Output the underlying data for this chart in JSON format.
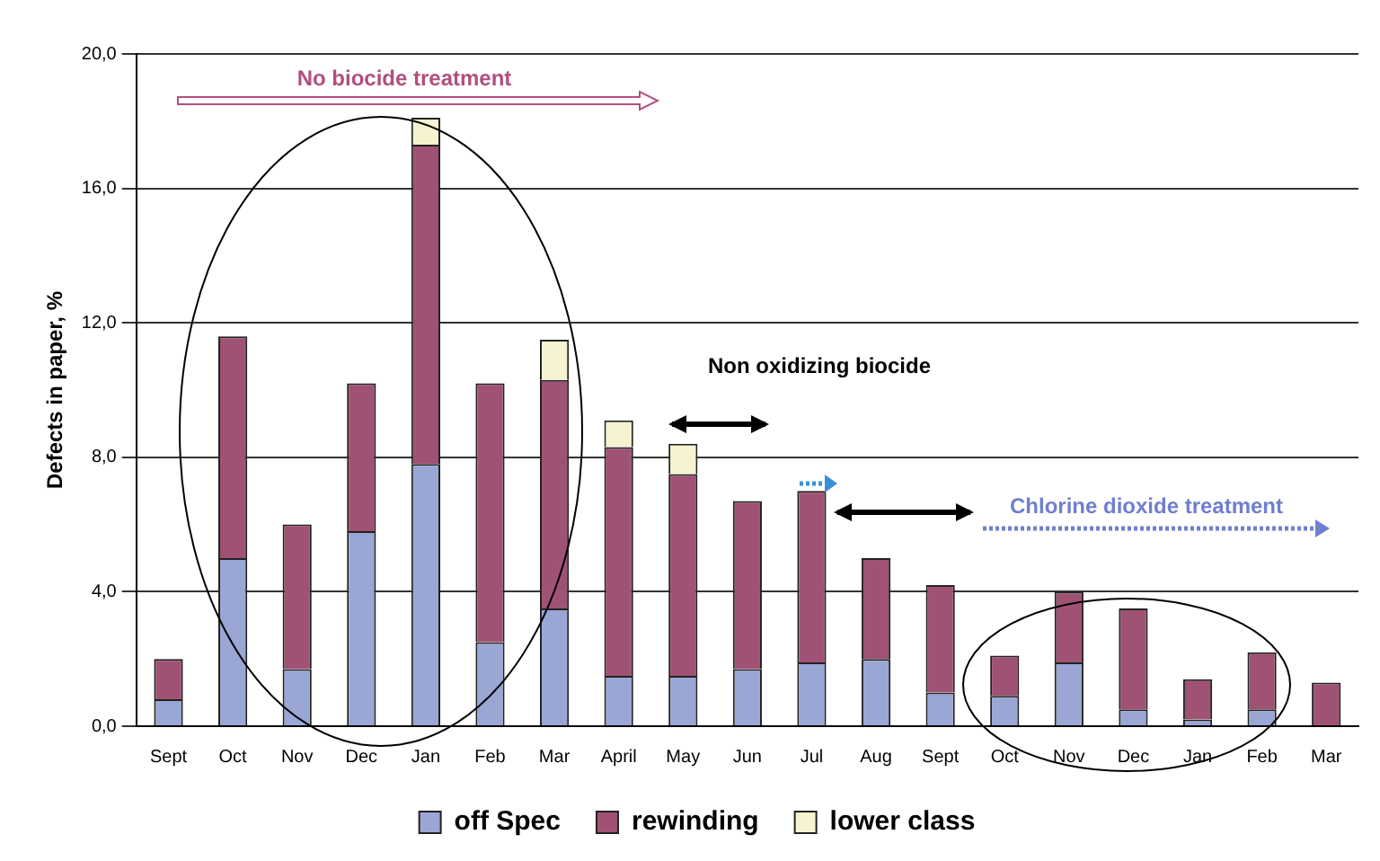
{
  "chart_data": {
    "type": "bar",
    "stacked": true,
    "ylabel": "Defects in paper, %",
    "categories": [
      "Sept",
      "Oct",
      "Nov",
      "Dec",
      "Jan",
      "Feb",
      "Mar",
      "April",
      "May",
      "Jun",
      "Jul",
      "Aug",
      "Sept",
      "Oct",
      "Nov",
      "Dec",
      "Jan",
      "Feb",
      "Mar"
    ],
    "series": [
      {
        "name": "off Spec",
        "color": "#9aa6d4",
        "values": [
          0.8,
          5.0,
          1.7,
          5.8,
          7.8,
          2.5,
          3.5,
          1.5,
          1.5,
          1.7,
          1.9,
          2.0,
          1.0,
          0.9,
          1.9,
          0.5,
          0.2,
          0.5,
          0
        ]
      },
      {
        "name": "rewinding",
        "color": "#a05275",
        "values": [
          1.2,
          6.6,
          4.3,
          4.4,
          9.5,
          7.7,
          6.8,
          6.8,
          6.0,
          5.0,
          5.1,
          3.0,
          3.2,
          1.2,
          2.1,
          3.0,
          1.2,
          1.7,
          1.3
        ]
      },
      {
        "name": "lower class",
        "color": "#f5f3d0",
        "values": [
          0,
          0,
          0,
          0,
          0.8,
          0,
          1.2,
          0.8,
          0.9,
          0,
          0,
          0,
          0,
          0,
          0,
          0,
          0,
          0,
          0
        ]
      }
    ],
    "ylim": [
      0,
      20
    ],
    "yticks": [
      {
        "value": 0,
        "label": "0,0"
      },
      {
        "value": 4,
        "label": "4,0"
      },
      {
        "value": 8,
        "label": "8,0"
      },
      {
        "value": 12,
        "label": "12,0"
      },
      {
        "value": 16,
        "label": "16,0"
      },
      {
        "value": 20,
        "label": "20,0"
      }
    ],
    "grid": "y",
    "legend": "bottom",
    "annotations": [
      "No biocide treatment",
      "Non oxidizing biocide",
      "Chlorine dioxide treatment"
    ]
  }
}
